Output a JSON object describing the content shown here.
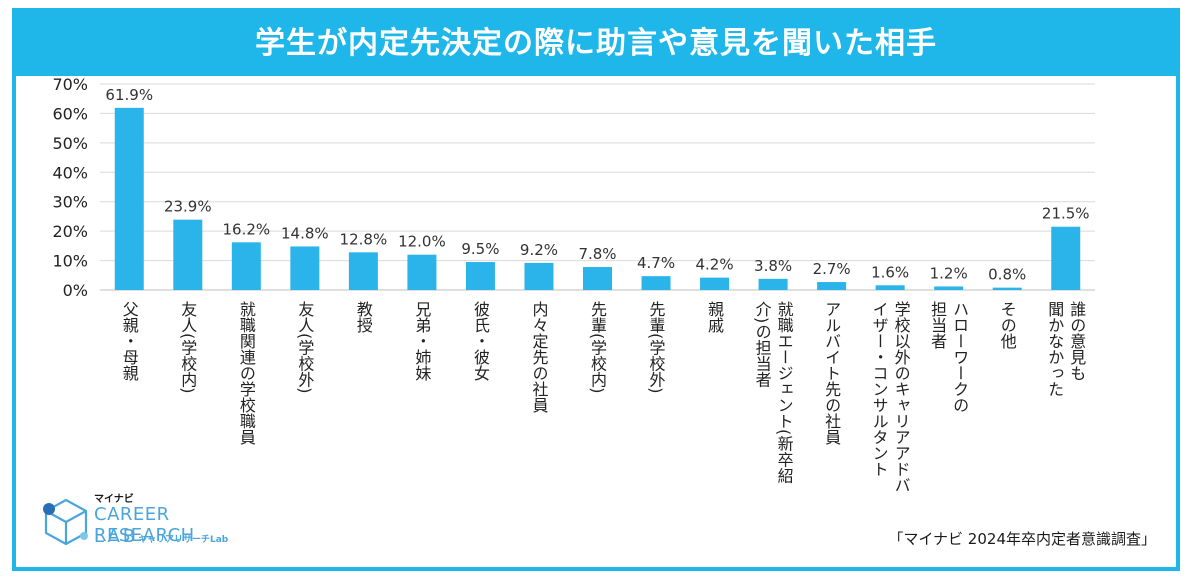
{
  "title": "学生が内定先決定の際に助言や意見を聞いた相手",
  "source_note": "「マイナビ 2024年卒内定者意識調査」",
  "logo": {
    "brand_small": "マイナビ",
    "brand_main": "CAREER RESEARCH",
    "brand_lab": "LAB",
    "brand_sub": "キャリアリサーチLab",
    "icon": "cube-logo-icon"
  },
  "colors": {
    "accent": "#1fb6ea",
    "bar": "#2ab4ea",
    "grid": "#d9d9d9"
  },
  "chart_data": {
    "type": "bar",
    "title": "学生が内定先決定の際に助言や意見を聞いた相手",
    "xlabel": "",
    "ylabel": "",
    "ylim": [
      0,
      70
    ],
    "yticks": [
      "0%",
      "10%",
      "20%",
      "30%",
      "40%",
      "50%",
      "60%",
      "70%"
    ],
    "grid": true,
    "categories": [
      [
        "父親・母親"
      ],
      [
        "友人(学校内)"
      ],
      [
        "就職関連の学校職員"
      ],
      [
        "友人(学校外)"
      ],
      [
        "教授"
      ],
      [
        "兄弟・姉妹"
      ],
      [
        "彼氏・彼女"
      ],
      [
        "内々定先の社員"
      ],
      [
        "先輩(学校内)"
      ],
      [
        "先輩(学校外)"
      ],
      [
        "親戚"
      ],
      [
        "就職エージェント(新卒紹",
        "介)の担当者"
      ],
      [
        "アルバイト先の社員"
      ],
      [
        "学校以外のキャリアアドバ",
        "イザー・コンサルタント"
      ],
      [
        "ハローワークの",
        "担当者"
      ],
      [
        "その他"
      ],
      [
        "誰の意見も",
        "聞かなかった"
      ]
    ],
    "values": [
      61.9,
      23.9,
      16.2,
      14.8,
      12.8,
      12.0,
      9.5,
      9.2,
      7.8,
      4.7,
      4.2,
      3.8,
      2.7,
      1.6,
      1.2,
      0.8,
      21.5
    ],
    "value_labels": [
      "61.9%",
      "23.9%",
      "16.2%",
      "14.8%",
      "12.8%",
      "12.0%",
      "9.5%",
      "9.2%",
      "7.8%",
      "4.7%",
      "4.2%",
      "3.8%",
      "2.7%",
      "1.6%",
      "1.2%",
      "0.8%",
      "21.5%"
    ]
  }
}
